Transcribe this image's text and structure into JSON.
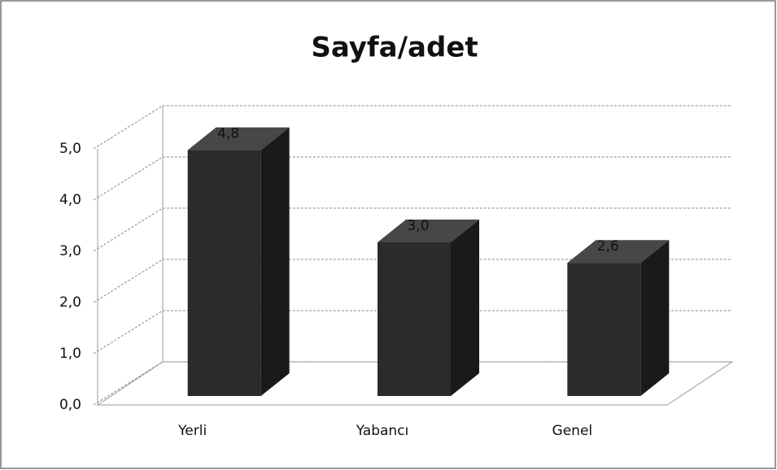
{
  "chart_data": {
    "type": "bar3d",
    "title": "Sayfa/adet",
    "categories": [
      "Yerli",
      "Yabancı",
      "Genel"
    ],
    "values": [
      4.8,
      3.0,
      2.6
    ],
    "value_labels": [
      "4,8",
      "3,0",
      "2,6"
    ],
    "color": "#2b2b2b",
    "ylim": [
      0,
      5
    ],
    "yticks": [
      {
        "value": 0,
        "label": "0,0"
      },
      {
        "value": 1,
        "label": "1,0"
      },
      {
        "value": 2,
        "label": "2,0"
      },
      {
        "value": 3,
        "label": "3,0"
      },
      {
        "value": 4,
        "label": "4,0"
      },
      {
        "value": 5,
        "label": "5,0"
      }
    ],
    "grid": true
  }
}
